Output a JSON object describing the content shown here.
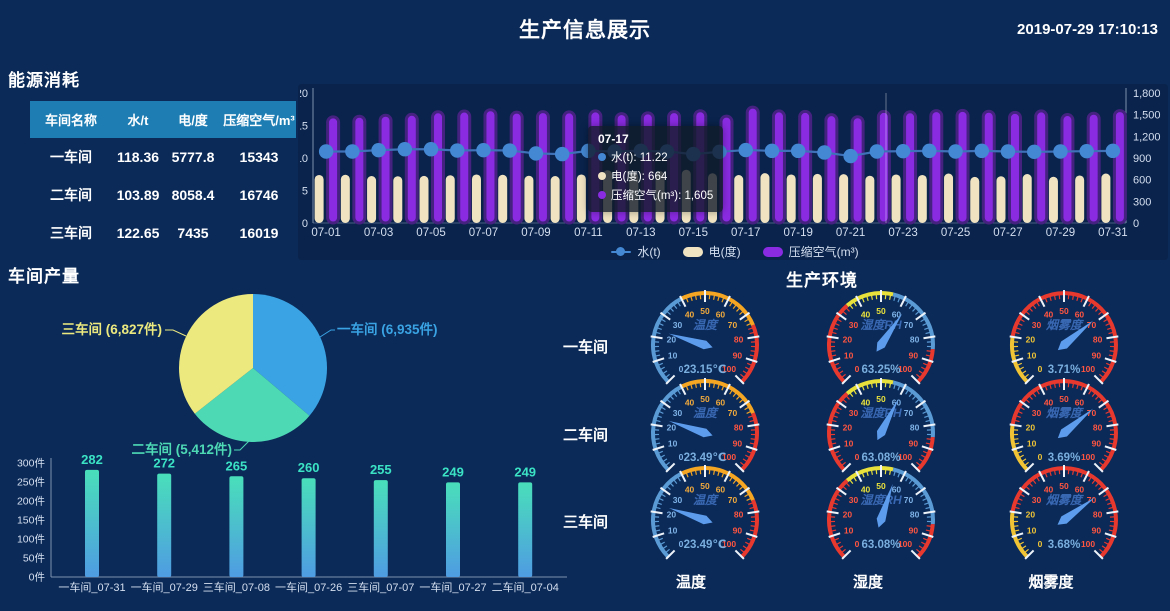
{
  "colors": {
    "background": "#0b2a58",
    "table_header_bg": "#1e7eb4",
    "water_blue": "#4488d4",
    "water_line": "#3f71b8",
    "cream": "#f0e3c2",
    "purple": "#8a2be2",
    "purple_dark_edge": "#45227f",
    "pie_blue": "#3aa3e3",
    "pie_teal": "#4ed9b5",
    "pie_yellow": "#ece97f",
    "bar_gradient_top": "#49dfba",
    "bar_gradient_bottom": "#4f9ce2",
    "value_teal": "#3be3c4",
    "gauge_needle": "#5d9cec",
    "gauge_label_blue": "#3c6cb8",
    "gauge_value_blue": "#79aede",
    "axis_text": "#d5dff0"
  },
  "header": {
    "title": "生产信息展示",
    "timestamp": "2019-07-29 17:10:13"
  },
  "energy": {
    "section_title": "能源消耗",
    "table": {
      "headers": [
        "车间名称",
        "水/t",
        "电/度",
        "压缩空气/m³"
      ],
      "rows": [
        [
          "一车间",
          "118.36",
          "5777.8",
          "15343"
        ],
        [
          "二车间",
          "103.89",
          "8058.4",
          "16746"
        ],
        [
          "三车间",
          "122.65",
          "7435",
          "16019"
        ]
      ]
    }
  },
  "tooltip": {
    "title": "07-17",
    "rows": [
      {
        "label": "水(t)",
        "value": "11.22",
        "color": "#4488d4"
      },
      {
        "label": "电(度)",
        "value": "664",
        "color": "#f0e3c2"
      },
      {
        "label": "压缩空气(m³)",
        "value": "1,605",
        "color": "#8a2be2"
      }
    ]
  },
  "production": {
    "section_title": "车间产量"
  },
  "environment": {
    "section_title": "生产环境",
    "row_labels": [
      "一车间",
      "二车间",
      "三车间"
    ],
    "col_labels": [
      "温度",
      "湿度",
      "烟雾度"
    ],
    "scale_numbers": [
      0,
      10,
      20,
      30,
      40,
      50,
      60,
      70,
      80,
      90,
      100
    ],
    "gauges": [
      {
        "row": "一车间",
        "label": "温度",
        "value": "23.15℃",
        "scheme": "temp",
        "needle_angle": 162.5
      },
      {
        "row": "一车间",
        "label": "湿度RH",
        "value": "63.25%",
        "scheme": "humidity",
        "needle_angle": 56
      },
      {
        "row": "一车间",
        "label": "烟雾度",
        "value": "3.71%",
        "scheme": "smoke",
        "needle_angle": 40
      },
      {
        "row": "二车间",
        "label": "温度",
        "value": "23.49℃",
        "scheme": "temp",
        "needle_angle": 161.6
      },
      {
        "row": "二车间",
        "label": "湿度RH",
        "value": "63.08%",
        "scheme": "humidity",
        "needle_angle": 63
      },
      {
        "row": "二车间",
        "label": "烟雾度",
        "value": "3.69%",
        "scheme": "smoke",
        "needle_angle": 40
      },
      {
        "row": "三车间",
        "label": "温度",
        "value": "23.49℃",
        "scheme": "temp",
        "needle_angle": 161.6
      },
      {
        "row": "三车间",
        "label": "湿度RH",
        "value": "63.08%",
        "scheme": "humidity",
        "needle_angle": 72
      },
      {
        "row": "三车间",
        "label": "烟雾度",
        "value": "3.68%",
        "scheme": "smoke",
        "needle_angle": 36
      }
    ]
  },
  "chart_data": [
    {
      "type": "bar",
      "note": "energy daily trend, bars + line, dual y-axis",
      "categories": [
        "07-01",
        "07-02",
        "07-03",
        "07-04",
        "07-05",
        "07-06",
        "07-07",
        "07-08",
        "07-09",
        "07-10",
        "07-11",
        "07-12",
        "07-13",
        "07-14",
        "07-15",
        "07-16",
        "07-17",
        "07-18",
        "07-19",
        "07-20",
        "07-21",
        "07-22",
        "07-23",
        "07-24",
        "07-25",
        "07-26",
        "07-27",
        "07-28",
        "07-29",
        "07-30",
        "07-31"
      ],
      "series": [
        {
          "name": "水(t)",
          "kind": "line",
          "axis": "left",
          "color": "#4488d4",
          "values": [
            11.0,
            11.0,
            11.2,
            11.35,
            11.35,
            11.15,
            11.2,
            11.15,
            10.7,
            10.6,
            11.1,
            11.0,
            11.1,
            11.0,
            10.6,
            10.95,
            11.22,
            11.1,
            11.1,
            10.85,
            10.3,
            11.0,
            11.05,
            11.1,
            11.0,
            11.1,
            11.0,
            10.95,
            11.0,
            11.05,
            11.1
          ]
        },
        {
          "name": "电(度)",
          "kind": "bar",
          "axis": "right",
          "color": "#f0e3c2",
          "values": [
            665,
            668,
            650,
            648,
            652,
            662,
            672,
            668,
            655,
            650,
            672,
            730,
            700,
            718,
            738,
            688,
            664,
            690,
            672,
            680,
            676,
            655,
            672,
            665,
            685,
            638,
            648,
            678,
            640,
            658,
            685
          ]
        },
        {
          "name": "压缩空气(m³)",
          "kind": "bar",
          "axis": "right",
          "color": "#8a2be2",
          "values": [
            1470,
            1478,
            1492,
            1505,
            1540,
            1550,
            1568,
            1535,
            1542,
            1538,
            1552,
            1515,
            1525,
            1542,
            1555,
            1480,
            1605,
            1552,
            1545,
            1500,
            1472,
            1545,
            1540,
            1556,
            1560,
            1548,
            1532,
            1552,
            1502,
            1520,
            1556
          ]
        }
      ],
      "left_axis": {
        "min": 0,
        "max": 20,
        "ticks": [
          "0",
          "5",
          "10",
          "15",
          "20"
        ]
      },
      "right_axis": {
        "min": 0,
        "max": 1800,
        "ticks": [
          "0",
          "300",
          "600",
          "900",
          "1,200",
          "1,500",
          "1,800"
        ]
      },
      "legend": [
        "水(t)",
        "电(度)",
        "压缩空气(m³)"
      ],
      "legend_position": "bottom"
    },
    {
      "type": "pie",
      "slices": [
        {
          "name": "一车间",
          "value": 6935,
          "label": "一车间 (6,935件)",
          "color": "#3aa3e3"
        },
        {
          "name": "二车间",
          "value": 5412,
          "label": "二车间 (5,412件)",
          "color": "#4ed9b5"
        },
        {
          "name": "三车间",
          "value": 6827,
          "label": "三车间 (6,827件)",
          "color": "#ece97f"
        }
      ]
    },
    {
      "type": "bar",
      "categories": [
        "一车间_07-31",
        "一车间_07-29",
        "三车间_07-08",
        "一车间_07-26",
        "三车间_07-07",
        "一车间_07-27",
        "二车间_07-04"
      ],
      "values": [
        282,
        272,
        265,
        260,
        255,
        249,
        249
      ],
      "y_ticks": [
        "0件",
        "50件",
        "100件",
        "150件",
        "200件",
        "250件",
        "300件"
      ],
      "ylim": [
        0,
        300
      ]
    }
  ]
}
